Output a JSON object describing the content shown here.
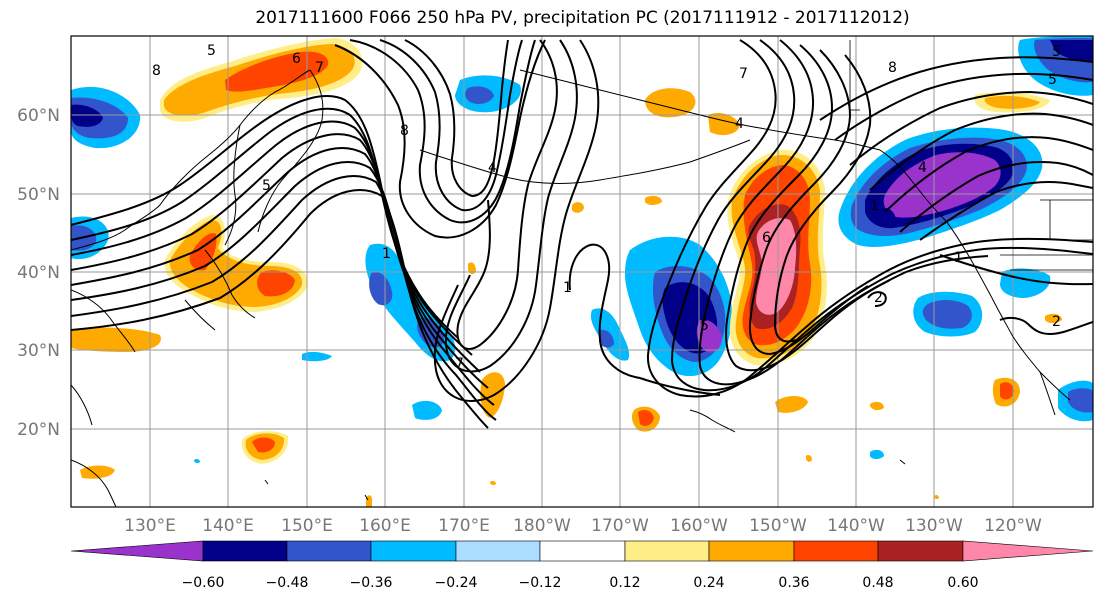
{
  "title": "2017111600 F066 250 hPa PV, precipitation PC (2017111912 - 2017112012)",
  "lat_labels": [
    "60°N",
    "50°N",
    "40°N",
    "30°N",
    "20°N"
  ],
  "lon_labels": [
    "130°E",
    "140°E",
    "150°E",
    "160°E",
    "170°E",
    "180°W",
    "170°W",
    "160°W",
    "150°W",
    "140°W",
    "130°W",
    "120°W"
  ],
  "colorbar": {
    "colors": [
      "#9933cc",
      "#000088",
      "#3355cc",
      "#00bbff",
      "#aaddff",
      "#ffffff",
      "#ffee88",
      "#ffaa00",
      "#ff4400",
      "#aa2222",
      "#ff88aa"
    ],
    "tick_labels": [
      "−0.60",
      "−0.48",
      "−0.36",
      "−0.24",
      "−0.12",
      "0.12",
      "0.24",
      "0.36",
      "0.48",
      "0.60"
    ]
  },
  "contour_labels": [
    "5",
    "6",
    "7",
    "8",
    "8",
    "4",
    "1",
    "5",
    "7",
    "1",
    "5",
    "4",
    "6",
    "1",
    "8",
    "4",
    "2",
    "7",
    "5",
    "5",
    "2",
    "1"
  ]
}
